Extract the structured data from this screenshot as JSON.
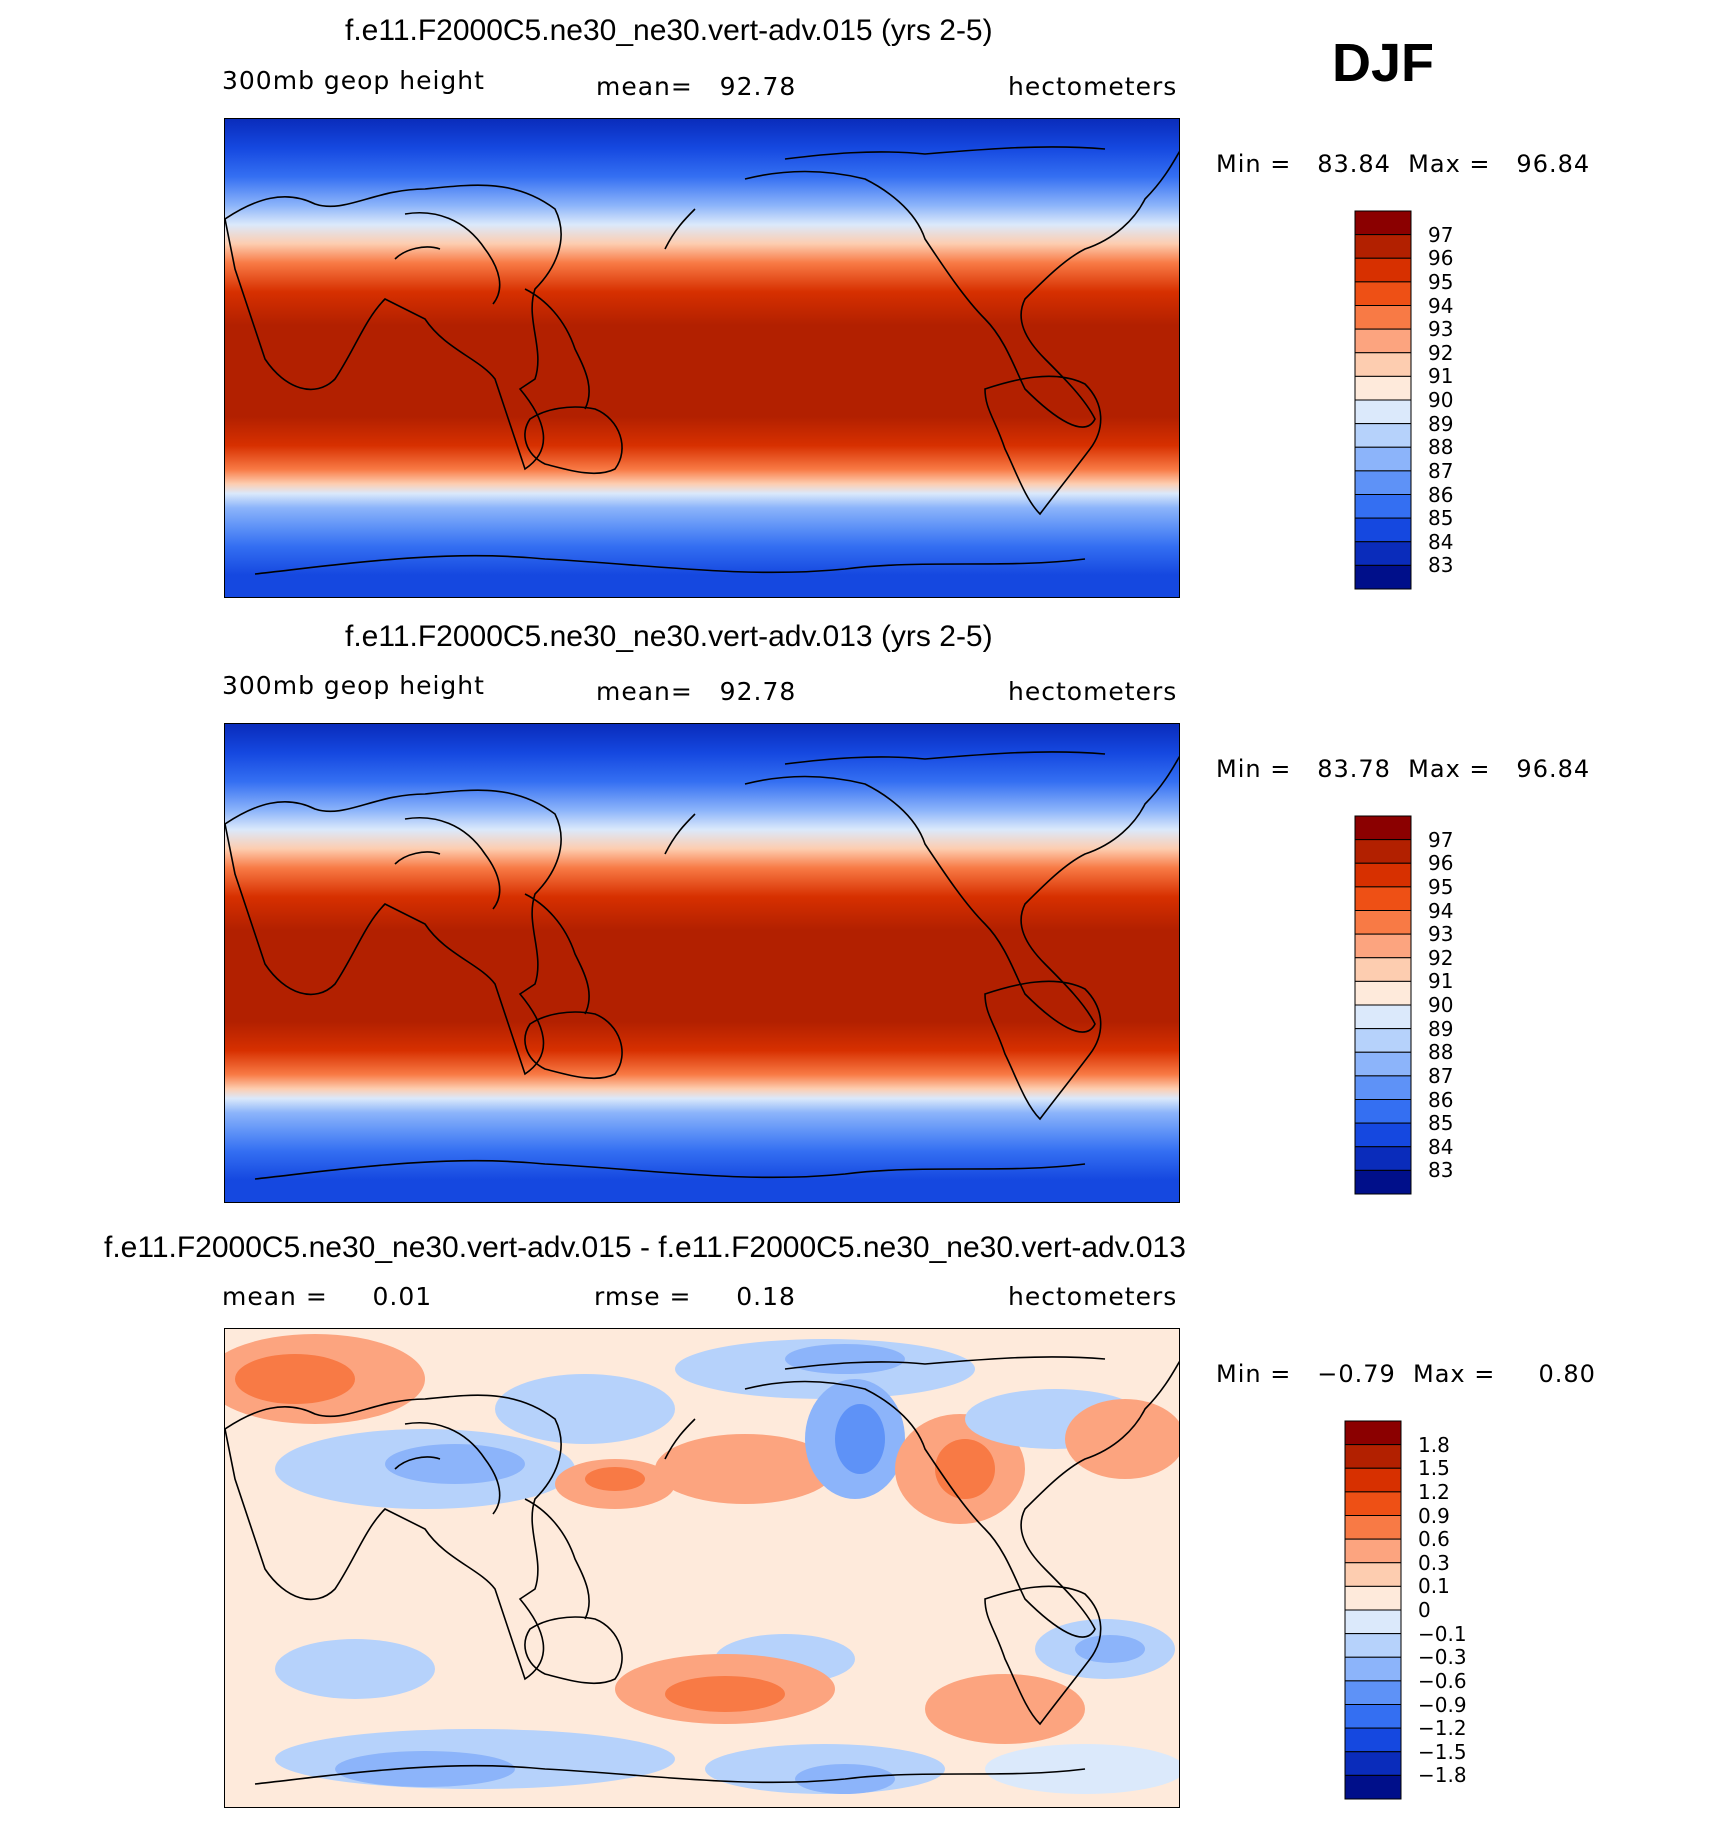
{
  "season": "DJF",
  "panels": [
    {
      "title": "f.e11.F2000C5.ne30_ne30.vert-adv.015 (yrs 2-5)",
      "left_label": "300mb  geop  height",
      "center_label": "mean=   92.78",
      "units": "hectometers",
      "minmax": "Min =   83.84  Max =   96.84"
    },
    {
      "title": "f.e11.F2000C5.ne30_ne30.vert-adv.013 (yrs 2-5)",
      "left_label": "300mb  geop  height",
      "center_label": "mean=   92.78",
      "units": "hectometers",
      "minmax": "Min =   83.78  Max =   96.84"
    },
    {
      "title": "f.e11.F2000C5.ne30_ne30.vert-adv.015 - f.e11.F2000C5.ne30_ne30.vert-adv.013",
      "left_label": "mean =     0.01",
      "center_label": "rmse =     0.18",
      "units": "hectometers",
      "minmax": "Min =   −0.79  Max =     0.80"
    }
  ],
  "colorbars": {
    "height": {
      "labels": [
        "97",
        "96",
        "95",
        "94",
        "93",
        "92",
        "91",
        "90",
        "89",
        "88",
        "87",
        "86",
        "85",
        "84",
        "83"
      ],
      "colors": [
        "#8b0000",
        "#b22000",
        "#d73000",
        "#ee5015",
        "#f87a45",
        "#fca47f",
        "#fdcdb0",
        "#feeadb",
        "#dbe9fb",
        "#b6d2fb",
        "#8cb4fa",
        "#5e92f7",
        "#346ff2",
        "#1548e0",
        "#0a2cbb",
        "#000f8a"
      ]
    },
    "diff": {
      "labels": [
        "1.8",
        "1.5",
        "1.2",
        "0.9",
        "0.6",
        "0.3",
        "0.1",
        "0",
        "−0.1",
        "−0.3",
        "−0.6",
        "−0.9",
        "−1.2",
        "−1.5",
        "−1.8"
      ],
      "colors": [
        "#8b0000",
        "#b22000",
        "#d73000",
        "#ee5015",
        "#f87a45",
        "#fca47f",
        "#fdcdb0",
        "#feeadb",
        "#dbe9fb",
        "#b6d2fb",
        "#8cb4fa",
        "#5e92f7",
        "#346ff2",
        "#1548e0",
        "#0a2cbb",
        "#000f8a"
      ]
    }
  }
}
